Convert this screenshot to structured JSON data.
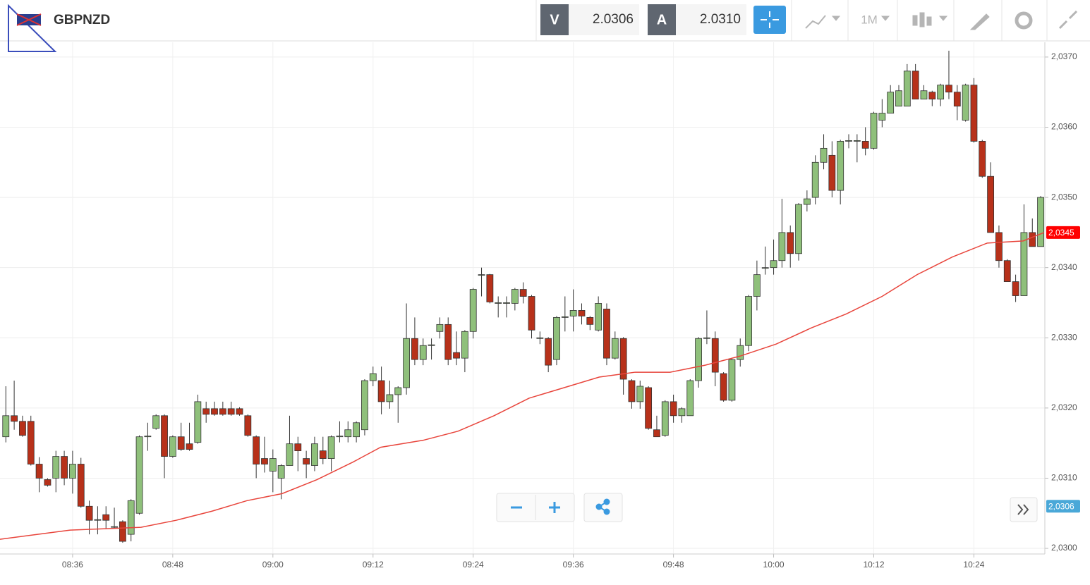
{
  "toolbar": {
    "symbol": "GBPNZD",
    "sell_label": "V",
    "sell_price": "2.0306",
    "buy_label": "A",
    "buy_price": "2.0310",
    "timeframe": "1M"
  },
  "chart_data": {
    "type": "candlestick",
    "x": [
      508,
      509,
      510,
      511,
      512,
      513,
      514,
      515,
      516,
      517,
      518,
      519,
      520,
      521,
      522,
      523,
      524,
      525,
      526,
      527,
      528,
      529,
      530,
      531,
      532,
      533,
      534,
      535,
      536,
      537,
      538,
      539,
      540,
      541,
      542,
      543,
      544,
      545,
      546,
      547,
      548,
      549,
      550,
      551,
      552,
      553,
      554,
      555,
      556,
      557,
      558,
      559,
      560,
      561,
      562,
      563,
      564,
      565,
      566,
      567,
      568,
      569,
      570,
      571,
      572,
      573,
      574,
      575,
      576,
      577,
      578,
      579,
      580,
      581,
      582,
      583,
      584,
      585,
      586,
      587,
      588,
      589,
      590,
      591,
      592,
      593,
      594,
      595,
      596,
      597,
      598,
      599,
      600,
      601,
      602,
      603,
      604,
      605,
      606,
      607,
      608,
      609,
      610,
      611,
      612,
      613,
      614,
      615,
      616,
      617,
      618,
      619,
      620,
      621,
      622,
      623,
      624,
      625,
      626,
      627,
      628,
      629,
      630,
      631,
      632
    ],
    "open": [
      2.03159,
      2.03189,
      2.03181,
      2.03181,
      2.0312,
      2.03098,
      2.031,
      2.03131,
      2.031,
      2.0312,
      2.0306,
      2.0304,
      2.03048,
      2.0303,
      2.03038,
      2.0302,
      2.0305,
      2.03159,
      2.03171,
      2.03189,
      2.03131,
      2.03159,
      2.03149,
      2.03151,
      2.03199,
      2.03199,
      2.03199,
      2.03199,
      2.03199,
      2.03189,
      2.03159,
      2.03128,
      2.0311,
      2.031,
      2.03118,
      2.03149,
      2.03128,
      2.03118,
      2.03139,
      2.03128,
      2.03159,
      2.03159,
      2.03159,
      2.03169,
      2.03239,
      2.03239,
      2.03209,
      2.03219,
      2.03229,
      2.03299,
      2.03269,
      2.03289,
      2.03309,
      2.03319,
      2.03279,
      2.03271,
      2.03309,
      2.03389,
      2.0339,
      2.03349,
      2.03349,
      2.03349,
      2.03369,
      2.03359,
      2.03299,
      2.03299,
      2.03269,
      2.03329,
      2.03331,
      2.03339,
      2.03329,
      2.03311,
      2.03341,
      2.03271,
      2.03299,
      2.03239,
      2.03209,
      2.03229,
      2.03169,
      2.03161,
      2.03209,
      2.03189,
      2.03189,
      2.03239,
      2.03299,
      2.03299,
      2.03249,
      2.03211,
      2.03269,
      2.03289,
      2.03359,
      2.03399,
      2.034,
      2.0341,
      2.0345,
      2.0342,
      2.0349,
      2.035,
      2.0355,
      2.0356,
      2.0351,
      2.0358,
      2.0358,
      2.0358,
      2.0357,
      2.0361,
      2.0362,
      2.0363,
      2.0363,
      2.0368,
      2.0364,
      2.0365,
      2.0364,
      2.0366,
      2.0365,
      2.0361,
      2.0366,
      2.0358,
      2.0353,
      2.0345,
      2.0341,
      2.0338,
      2.0336,
      2.0345,
      2.0343
    ],
    "high": [
      2.03231,
      2.03239,
      2.03189,
      2.03189,
      2.0313,
      2.031,
      2.03139,
      2.03139,
      2.03139,
      2.03129,
      2.03068,
      2.0306,
      2.0306,
      2.03058,
      2.0304,
      2.0307,
      2.03161,
      2.03179,
      2.03191,
      2.03191,
      2.03161,
      2.03179,
      2.03179,
      2.03219,
      2.03209,
      2.03209,
      2.03209,
      2.03209,
      2.03201,
      2.03191,
      2.03161,
      2.03159,
      2.03141,
      2.0312,
      2.03189,
      2.03159,
      2.03139,
      2.03159,
      2.03159,
      2.03161,
      2.03181,
      2.03181,
      2.03181,
      2.03241,
      2.03259,
      2.03259,
      2.03239,
      2.03231,
      2.03349,
      2.03329,
      2.03299,
      2.03299,
      2.03329,
      2.03329,
      2.03309,
      2.03311,
      2.03371,
      2.034,
      2.03391,
      2.03359,
      2.03359,
      2.03371,
      2.03379,
      2.03361,
      2.03309,
      2.03301,
      2.03331,
      2.03359,
      2.03369,
      2.03349,
      2.03331,
      2.03359,
      2.03349,
      2.03309,
      2.03301,
      2.03241,
      2.03239,
      2.03231,
      2.03189,
      2.03211,
      2.03219,
      2.03201,
      2.03241,
      2.03301,
      2.03339,
      2.03309,
      2.03251,
      2.03271,
      2.03299,
      2.03361,
      2.0341,
      2.0343,
      2.0344,
      2.03498,
      2.0346,
      2.03492,
      2.0351,
      2.0356,
      2.0359,
      2.0358,
      2.03582,
      2.0359,
      2.0359,
      2.036,
      2.03622,
      2.0364,
      2.0366,
      2.0366,
      2.0369,
      2.0369,
      2.0366,
      2.03652,
      2.03662,
      2.03709,
      2.0366,
      2.03662,
      2.0367,
      2.03582,
      2.0355,
      2.0346,
      2.03412,
      2.0339,
      2.0349,
      2.0347,
      2.03502
    ],
    "low": [
      2.03151,
      2.03169,
      2.03159,
      2.03118,
      2.0308,
      2.03088,
      2.0308,
      2.0309,
      2.03078,
      2.03058,
      2.0302,
      2.0302,
      2.03028,
      2.03028,
      2.03008,
      2.0301,
      2.03048,
      2.03139,
      2.03169,
      2.031,
      2.03129,
      2.03139,
      2.03139,
      2.03149,
      2.03179,
      2.03189,
      2.03189,
      2.03189,
      2.03189,
      2.03159,
      2.031,
      2.03108,
      2.0308,
      2.0307,
      2.03118,
      2.0311,
      2.031,
      2.0311,
      2.0312,
      2.0311,
      2.03151,
      2.03151,
      2.03151,
      2.03161,
      2.03231,
      2.03191,
      2.03199,
      2.03179,
      2.03219,
      2.03261,
      2.03261,
      2.03269,
      2.03299,
      2.03261,
      2.03261,
      2.03251,
      2.03299,
      2.03359,
      2.03349,
      2.03329,
      2.03329,
      2.03339,
      2.03349,
      2.03299,
      2.03291,
      2.03251,
      2.03261,
      2.03309,
      2.03309,
      2.03319,
      2.03311,
      2.03309,
      2.03261,
      2.03269,
      2.03219,
      2.03199,
      2.03199,
      2.03169,
      2.03159,
      2.03159,
      2.03179,
      2.03179,
      2.03189,
      2.03229,
      2.03291,
      2.03231,
      2.03209,
      2.03209,
      2.03259,
      2.03281,
      2.03339,
      2.0339,
      2.0339,
      2.034,
      2.034,
      2.0341,
      2.0348,
      2.0349,
      2.0354,
      2.035,
      2.0349,
      2.0357,
      2.0355,
      2.0356,
      2.03568,
      2.036,
      2.0362,
      2.0363,
      2.0363,
      2.0364,
      2.0364,
      2.0363,
      2.0363,
      2.0364,
      2.0361,
      2.03608,
      2.03578,
      2.03528,
      2.0345,
      2.034,
      2.0338,
      2.03351,
      2.0336,
      2.0343,
      2.0343
    ],
    "close": [
      2.03189,
      2.03181,
      2.03161,
      2.0312,
      2.031,
      2.0309,
      2.03131,
      2.031,
      2.0312,
      2.0306,
      2.0304,
      2.03041,
      2.0304,
      2.03031,
      2.0301,
      2.03068,
      2.03159,
      2.0316,
      2.03189,
      2.03131,
      2.03159,
      2.03141,
      2.03141,
      2.03209,
      2.03191,
      2.03191,
      2.03191,
      2.03191,
      2.03191,
      2.03161,
      2.0312,
      2.0312,
      2.03128,
      2.03118,
      2.03149,
      2.03139,
      2.0312,
      2.03149,
      2.03128,
      2.03159,
      2.0316,
      2.03169,
      2.03179,
      2.03239,
      2.03249,
      2.03209,
      2.03219,
      2.03229,
      2.03299,
      2.03269,
      2.03289,
      2.0329,
      2.03319,
      2.03269,
      2.03271,
      2.03309,
      2.03369,
      2.0339,
      2.03351,
      2.0335,
      2.0335,
      2.03369,
      2.03359,
      2.03311,
      2.033,
      2.03261,
      2.03329,
      2.0333,
      2.03339,
      2.03331,
      2.03319,
      2.03349,
      2.03271,
      2.03299,
      2.03241,
      2.03209,
      2.03231,
      2.03171,
      2.03159,
      2.03209,
      2.03189,
      2.03199,
      2.03239,
      2.03299,
      2.033,
      2.03251,
      2.03211,
      2.03269,
      2.03289,
      2.03359,
      2.0339,
      2.034,
      2.0341,
      2.0345,
      2.0342,
      2.0349,
      2.03498,
      2.0355,
      2.0357,
      2.0351,
      2.0358,
      2.03581,
      2.03581,
      2.0357,
      2.0362,
      2.0362,
      2.0365,
      2.03652,
      2.0368,
      2.0364,
      2.03652,
      2.0364,
      2.0366,
      2.0365,
      2.0363,
      2.0366,
      2.0358,
      2.0353,
      2.0345,
      2.0341,
      2.0338,
      2.0336,
      2.0345,
      2.0343,
      2.035
    ],
    "up_color": "#8fc07b",
    "down_color": "#b7311a",
    "ma": {
      "color": "#e8453c",
      "x": [
        507.3,
        515.7,
        520.0,
        524.2,
        528.4,
        532.7,
        536.9,
        541.1,
        545.3,
        549.6,
        552.9,
        558.0,
        562.2,
        566.5,
        570.7,
        574.9,
        579.1,
        583.4,
        587.6,
        591.8,
        596.0,
        600.3,
        604.5,
        608.7,
        613.0,
        617.2,
        621.4,
        625.6,
        629.9,
        632.4
      ],
      "values": [
        2.03013,
        2.03026,
        2.03028,
        2.0303,
        2.0304,
        2.03053,
        2.03068,
        2.03078,
        2.03098,
        2.03123,
        2.03144,
        2.03154,
        2.03167,
        2.03189,
        2.03214,
        2.03229,
        2.03244,
        2.03251,
        2.03251,
        2.03261,
        2.03274,
        2.03291,
        2.03314,
        2.03334,
        2.03359,
        2.0339,
        2.03415,
        2.03435,
        2.03438,
        2.0345
      ]
    },
    "last_label": {
      "value": 2.0345,
      "label": "2,0345",
      "color": "#ff0000"
    },
    "bid_label": {
      "value": 2.0306,
      "label": "2,0306",
      "color": "#4aa8d8"
    },
    "xlim": [
      507.3,
      632.5
    ],
    "ylim": [
      2.02992,
      2.03721
    ],
    "xticks": [
      {
        "value": 516,
        "label": "08:36"
      },
      {
        "value": 528,
        "label": "08:48"
      },
      {
        "value": 540,
        "label": "09:00"
      },
      {
        "value": 552,
        "label": "09:12"
      },
      {
        "value": 564,
        "label": "09:24"
      },
      {
        "value": 576,
        "label": "09:36"
      },
      {
        "value": 588,
        "label": "09:48"
      },
      {
        "value": 600,
        "label": "10:00"
      },
      {
        "value": 612,
        "label": "10:12"
      },
      {
        "value": 624,
        "label": "10:24"
      }
    ],
    "yticks": [
      {
        "value": 2.03,
        "label": "2,0300"
      },
      {
        "value": 2.031,
        "label": "2,0310"
      },
      {
        "value": 2.032,
        "label": "2,0320"
      },
      {
        "value": 2.033,
        "label": "2,0330"
      },
      {
        "value": 2.034,
        "label": "2,0340"
      },
      {
        "value": 2.035,
        "label": "2,0350"
      },
      {
        "value": 2.036,
        "label": "2,0360"
      },
      {
        "value": 2.037,
        "label": "2,0370"
      }
    ],
    "grid": true
  }
}
